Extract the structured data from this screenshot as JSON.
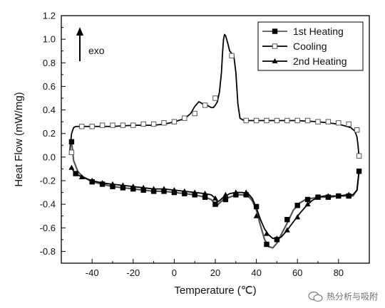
{
  "chart_data": {
    "type": "line",
    "xlabel": "Temperature (℃)",
    "ylabel": "Heat Flow (mW/mg)",
    "xlim": [
      -55,
      95
    ],
    "ylim": [
      -0.9,
      1.2
    ],
    "xticks": [
      -40,
      -20,
      0,
      20,
      40,
      60,
      80
    ],
    "yticks": [
      -0.8,
      -0.6,
      -0.4,
      -0.2,
      0.0,
      0.2,
      0.4,
      0.6,
      0.8,
      1.0,
      1.2
    ],
    "xtick_labels": [
      "-40",
      "-20",
      "0",
      "20",
      "40",
      "60",
      "80"
    ],
    "ytick_labels": [
      "-0.8",
      "-0.6",
      "-0.4",
      "-0.2",
      "0.0",
      "0.2",
      "0.4",
      "0.6",
      "0.8",
      "1.0",
      "1.2"
    ],
    "annotation": "exo",
    "legend_position": "top-right",
    "grid": false,
    "series": [
      {
        "name": "1st Heating",
        "color": "#555555",
        "marker": "filled-square",
        "x": [
          -50,
          -49,
          -47,
          -45,
          -40,
          -35,
          -30,
          -25,
          -20,
          -15,
          -10,
          -5,
          0,
          5,
          10,
          15,
          18,
          20,
          21,
          22,
          24,
          27,
          30,
          33,
          36,
          38,
          40,
          42,
          44,
          46,
          48,
          50,
          52,
          55,
          58,
          61,
          64,
          67,
          70,
          73,
          76,
          80,
          84,
          87,
          89,
          90
        ],
        "y": [
          0.13,
          -0.03,
          -0.12,
          -0.16,
          -0.21,
          -0.23,
          -0.25,
          -0.26,
          -0.27,
          -0.28,
          -0.29,
          -0.29,
          -0.3,
          -0.31,
          -0.32,
          -0.34,
          -0.36,
          -0.4,
          -0.41,
          -0.39,
          -0.36,
          -0.34,
          -0.32,
          -0.32,
          -0.33,
          -0.37,
          -0.45,
          -0.58,
          -0.7,
          -0.76,
          -0.77,
          -0.73,
          -0.66,
          -0.56,
          -0.45,
          -0.39,
          -0.36,
          -0.35,
          -0.34,
          -0.34,
          -0.34,
          -0.33,
          -0.33,
          -0.33,
          -0.28,
          -0.12
        ],
        "marker_x": [
          -50,
          -48,
          -40,
          -35,
          -30,
          -25,
          -20,
          -15,
          -10,
          -5,
          0,
          5,
          10,
          15,
          20,
          25,
          30,
          35,
          40,
          45,
          50,
          55,
          60,
          65,
          70,
          75,
          80,
          85,
          90
        ],
        "marker_y": [
          0.13,
          -0.14,
          -0.21,
          -0.23,
          -0.25,
          -0.26,
          -0.27,
          -0.28,
          -0.29,
          -0.29,
          -0.3,
          -0.31,
          -0.32,
          -0.34,
          -0.4,
          -0.36,
          -0.32,
          -0.32,
          -0.42,
          -0.74,
          -0.7,
          -0.53,
          -0.41,
          -0.36,
          -0.34,
          -0.34,
          -0.33,
          -0.33,
          -0.12
        ]
      },
      {
        "name": "Cooling",
        "color": "#000000",
        "marker": "open-square",
        "x": [
          90,
          89.5,
          89,
          88,
          86,
          80,
          70,
          60,
          50,
          40,
          36,
          34,
          32,
          31,
          30,
          29,
          28,
          27,
          26,
          25,
          24.5,
          24,
          23.5,
          23,
          22,
          21,
          20,
          19,
          18,
          17,
          16,
          15,
          14,
          13,
          12,
          11,
          10,
          9,
          8,
          6,
          4,
          2,
          0,
          -2,
          -5,
          -10,
          -20,
          -30,
          -40,
          -45,
          -48,
          -49,
          -50,
          -50.5,
          -51
        ],
        "y": [
          0.0,
          0.1,
          0.17,
          0.22,
          0.25,
          0.28,
          0.3,
          0.31,
          0.31,
          0.31,
          0.31,
          0.31,
          0.33,
          0.45,
          0.72,
          0.86,
          0.88,
          0.9,
          0.97,
          1.03,
          1.04,
          1.0,
          0.88,
          0.72,
          0.55,
          0.47,
          0.44,
          0.42,
          0.42,
          0.43,
          0.44,
          0.45,
          0.45,
          0.46,
          0.47,
          0.45,
          0.43,
          0.4,
          0.37,
          0.34,
          0.32,
          0.31,
          0.3,
          0.29,
          0.28,
          0.27,
          0.27,
          0.26,
          0.26,
          0.26,
          0.26,
          0.25,
          0.2,
          0.12,
          0.02
        ],
        "marker_x": [
          -50,
          -45,
          -40,
          -35,
          -30,
          -25,
          -20,
          -15,
          -10,
          -5,
          0,
          5,
          10,
          15,
          20,
          28,
          35,
          40,
          45,
          50,
          55,
          60,
          65,
          70,
          75,
          80,
          85,
          89,
          90
        ],
        "marker_y": [
          0.04,
          0.26,
          0.26,
          0.27,
          0.27,
          0.27,
          0.27,
          0.28,
          0.28,
          0.29,
          0.3,
          0.33,
          0.37,
          0.44,
          0.5,
          0.86,
          0.31,
          0.31,
          0.31,
          0.31,
          0.31,
          0.31,
          0.31,
          0.3,
          0.3,
          0.29,
          0.28,
          0.23,
          0.01
        ]
      },
      {
        "name": "2nd Heating",
        "color": "#000000",
        "marker": "filled-triangle",
        "x": [
          -51,
          -50,
          -49,
          -47,
          -45,
          -40,
          -35,
          -30,
          -25,
          -20,
          -15,
          -10,
          -5,
          0,
          5,
          10,
          15,
          18,
          20,
          21,
          22,
          24,
          27,
          30,
          33,
          36,
          38,
          40,
          42,
          44,
          46,
          48,
          50,
          52,
          55,
          58,
          61,
          64,
          67,
          70,
          73,
          76,
          80,
          84,
          87,
          89,
          90
        ],
        "y": [
          -0.1,
          -0.09,
          -0.12,
          -0.15,
          -0.17,
          -0.2,
          -0.22,
          -0.23,
          -0.24,
          -0.25,
          -0.26,
          -0.27,
          -0.27,
          -0.28,
          -0.29,
          -0.3,
          -0.31,
          -0.32,
          -0.35,
          -0.38,
          -0.37,
          -0.34,
          -0.31,
          -0.3,
          -0.3,
          -0.31,
          -0.35,
          -0.43,
          -0.53,
          -0.61,
          -0.66,
          -0.69,
          -0.69,
          -0.68,
          -0.62,
          -0.55,
          -0.48,
          -0.42,
          -0.37,
          -0.34,
          -0.33,
          -0.33,
          -0.33,
          -0.32,
          -0.32,
          -0.28,
          -0.12
        ],
        "marker_x": [
          -50,
          -45,
          -40,
          -35,
          -30,
          -25,
          -20,
          -15,
          -10,
          -5,
          0,
          5,
          10,
          15,
          20,
          25,
          30,
          35,
          40,
          45,
          50,
          55,
          60,
          65,
          70,
          75,
          80,
          85
        ],
        "marker_y": [
          -0.09,
          -0.17,
          -0.2,
          -0.22,
          -0.23,
          -0.24,
          -0.25,
          -0.26,
          -0.27,
          -0.27,
          -0.28,
          -0.29,
          -0.3,
          -0.31,
          -0.35,
          -0.32,
          -0.3,
          -0.3,
          -0.5,
          -0.65,
          -0.69,
          -0.62,
          -0.51,
          -0.4,
          -0.34,
          -0.33,
          -0.33,
          -0.32
        ]
      }
    ]
  },
  "watermark": {
    "text": "热分析与吸附",
    "icon": "wechat-logo-icon"
  }
}
